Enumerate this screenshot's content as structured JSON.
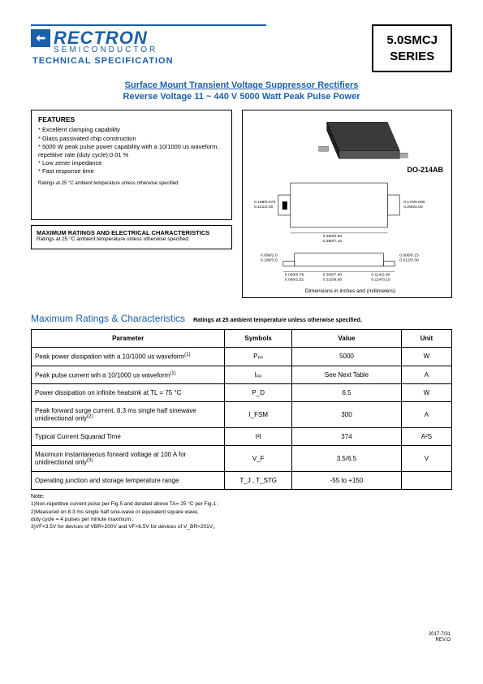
{
  "header": {
    "brand": "RECTRON",
    "brand_sub": "SEMICONDUCTOR",
    "tech_spec": "TECHNICAL SPECIFICATION",
    "series_line1": "5.0SMCJ",
    "series_line2": "SERIES",
    "logo_color": "#1b5fa8"
  },
  "title": {
    "line1": "Surface Mount Transient Voltage Suppressor Rectifiers",
    "line2": "Reverse Voltage 11 ~ 440 V  5000 Watt Peak Pulse Power"
  },
  "features": {
    "heading": "FEATURES",
    "items": [
      "Excellent clamping capability",
      "Glass passivated chip construction",
      "5000 W peak pulse power capability with a 10/1000 us waveform, repetitive rate (duty cycle):0.01 %",
      "Low zener impedance",
      "Fast response time"
    ],
    "ratings_note": "Ratings at 25 °C ambient temperature unless otherwise specified."
  },
  "maxratbox": {
    "heading": "MAXIMUM RATINGS AND ELECTRICAL CHARACTERISTICS",
    "note": "Ratings at 25 °C ambient temperature unless otherwise specified."
  },
  "diagram": {
    "package": "DO-214AB",
    "dim_note": "Dimensions in inches and (millimeters)",
    "dims": {
      "a1": "0.108/0.079",
      "a1m": "0.121/2.00",
      "b1": "0.170/0.080",
      "b1m": "0.290/2.00",
      "c1": "0.260/6.60",
      "c1m": "0.280/7.10",
      "d1": "0.096/2.0",
      "d1m": "0.196/3.0",
      "e1": "0.006/0.15",
      "e1m": "0.012/0.30",
      "f1": "0.030/0.76",
      "f1m": "0.060/1.52",
      "g1": "0.305/7.40",
      "g1m": "0.315/8.00",
      "h1": "0.114/2.90",
      "h1m": "0.124/3.15"
    }
  },
  "section": {
    "heading": "Maximum Ratings & Characteristics",
    "sub": "Ratings at 25   ambient temperature unless otherwise specified."
  },
  "table": {
    "headers": [
      "Parameter",
      "Symbols",
      "Value",
      "Unit"
    ],
    "rows": [
      {
        "param": "Peak power dissipation with a 10/1000 us waveform",
        "sup": "(1)",
        "symbol": "Pₚₚ",
        "value": "5000",
        "unit": "W"
      },
      {
        "param": "Peak pulse current wih a 10/1000 us waveform",
        "sup": "(1)",
        "symbol": "Iₚₚ",
        "value": "See Next Table",
        "unit": "A"
      },
      {
        "param": "Power dissipation on infinite heatsink at TL = 75 °C",
        "sup": "",
        "symbol": "P_D",
        "value": "6.5",
        "unit": "W"
      },
      {
        "param": "Peak forward surge current, 8.3 ms single half sinewave unidirectional only",
        "sup": "(2)",
        "symbol": "I_FSM",
        "value": "300",
        "unit": "A"
      },
      {
        "param": "Typical Current Squarad Time",
        "sup": "",
        "symbol": "I²t",
        "value": "374",
        "unit": "A²S"
      },
      {
        "param": "Maximum instantaneous forward voltage at 100 A for unidirectional only",
        "sup": "(3)",
        "symbol": "V_F",
        "value": "3.5/6.5",
        "unit": "V"
      },
      {
        "param": "Operating junction and storage temperature range",
        "sup": "",
        "symbol": "T_J , T_STG",
        "value": "-55 to +150",
        "unit": ""
      }
    ]
  },
  "notes": {
    "heading": "Note:",
    "items": [
      "1)Non-repetitive current pulse  per Fig.5 and derated above TA= 25 °C per Fig.1 ;",
      "2)Measured on 8.3 ms single half sine-wave or equivalent square wave,",
      "   duty cycle = 4 pulses per minute maximum ;",
      "3)VF<3.5V for devices of VBR<200V and VF<6.5V for devices of V_BR>201V。"
    ]
  },
  "footer": {
    "date": "2017-7/31",
    "rev": "REV:O"
  }
}
